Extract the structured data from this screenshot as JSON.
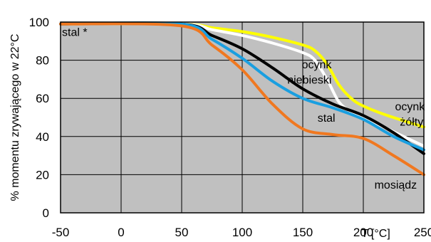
{
  "chart_data": {
    "type": "line",
    "xlabel": "T [°C]",
    "ylabel": "% momentu zrywającego w 22°C",
    "xlim": [
      -50,
      250
    ],
    "ylim": [
      0,
      100
    ],
    "x_ticks": [
      -50,
      0,
      50,
      100,
      150,
      200,
      250
    ],
    "y_ticks": [
      0,
      20,
      40,
      60,
      80,
      100
    ],
    "grid": true,
    "background": "#c0c0c0",
    "series": [
      {
        "color": "#ffff00",
        "points": [
          [
            -50,
            99
          ],
          [
            50,
            99
          ],
          [
            75,
            97
          ],
          [
            100,
            95
          ],
          [
            125,
            92
          ],
          [
            150,
            88
          ],
          [
            160,
            85
          ],
          [
            170,
            78
          ],
          [
            180,
            67
          ],
          [
            190,
            60
          ],
          [
            200,
            56
          ],
          [
            220,
            51
          ],
          [
            250,
            45
          ]
        ]
      },
      {
        "color": "#ffffff",
        "points": [
          [
            -50,
            99
          ],
          [
            50,
            99
          ],
          [
            75,
            96
          ],
          [
            100,
            93
          ],
          [
            125,
            89
          ],
          [
            150,
            84
          ],
          [
            160,
            80
          ],
          [
            170,
            70
          ],
          [
            180,
            58
          ],
          [
            190,
            53
          ],
          [
            200,
            50
          ],
          [
            220,
            44
          ],
          [
            250,
            35
          ]
        ]
      },
      {
        "color": "#000000",
        "points": [
          [
            -50,
            99
          ],
          [
            50,
            99
          ],
          [
            75,
            93
          ],
          [
            100,
            86
          ],
          [
            125,
            76
          ],
          [
            150,
            65
          ],
          [
            175,
            57
          ],
          [
            200,
            51
          ],
          [
            225,
            42
          ],
          [
            250,
            31
          ]
        ]
      },
      {
        "color": "#1a9fe0",
        "points": [
          [
            -50,
            99
          ],
          [
            50,
            99
          ],
          [
            75,
            91
          ],
          [
            100,
            81
          ],
          [
            125,
            69
          ],
          [
            150,
            60
          ],
          [
            175,
            55
          ],
          [
            200,
            49
          ],
          [
            225,
            40
          ],
          [
            250,
            33
          ]
        ]
      },
      {
        "color": "#f07820",
        "points": [
          [
            -50,
            99
          ],
          [
            50,
            98
          ],
          [
            75,
            88
          ],
          [
            100,
            75
          ],
          [
            125,
            57
          ],
          [
            150,
            44
          ],
          [
            175,
            41
          ],
          [
            200,
            39
          ],
          [
            225,
            30
          ],
          [
            250,
            20
          ]
        ]
      }
    ],
    "annotations": [
      {
        "id": "stal-star",
        "text": "stal *",
        "x": -50,
        "y": 95
      },
      {
        "id": "ocynk-niebieski-1",
        "text": "ocynk",
        "x": 148,
        "y": 78
      },
      {
        "id": "ocynk-niebieski-2",
        "text": "niebieski",
        "x": 136,
        "y": 70
      },
      {
        "id": "stal",
        "text": "stal",
        "x": 161,
        "y": 50
      },
      {
        "id": "ocynk-zolty-1",
        "text": "ocynk",
        "x": 225,
        "y": 56
      },
      {
        "id": "ocynk-zolty-2",
        "text": "żółty",
        "x": 229,
        "y": 48
      },
      {
        "id": "mosiadz",
        "text": "mosiądz",
        "x": 208,
        "y": 15
      }
    ]
  }
}
